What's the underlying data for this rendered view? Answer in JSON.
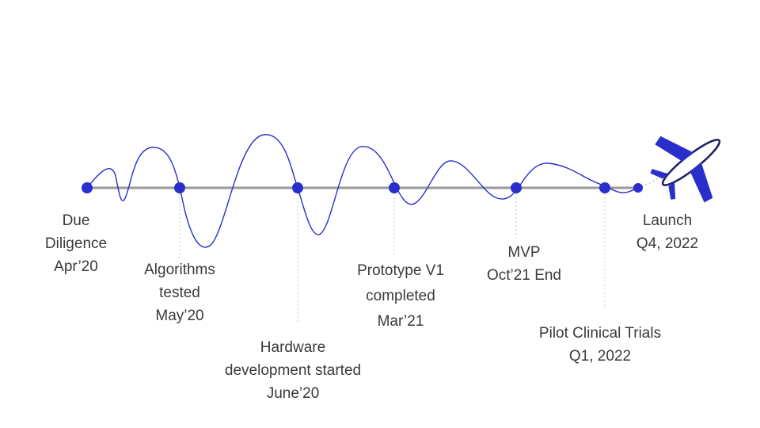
{
  "colors": {
    "accent": "#2a2ecb",
    "axis": "#9a9a9a",
    "guide": "#c8c8c8",
    "text": "#3a3a3a"
  },
  "milestones": [
    {
      "lines": [
        "Due",
        "Diligence",
        "Apr’20"
      ]
    },
    {
      "lines": [
        "Algorithms",
        "tested",
        "May’20"
      ]
    },
    {
      "lines": [
        "Hardware",
        "development started",
        "June’20"
      ]
    },
    {
      "lines": [
        "Prototype V1",
        "completed",
        "Mar’21"
      ]
    },
    {
      "lines": [
        "MVP",
        "Oct’21 End"
      ]
    },
    {
      "lines": [
        "Pilot Clinical Trials",
        "Q1, 2022"
      ]
    },
    {
      "lines": [
        "Launch",
        "Q4, 2022"
      ]
    }
  ],
  "end_icon": "airplane-icon"
}
